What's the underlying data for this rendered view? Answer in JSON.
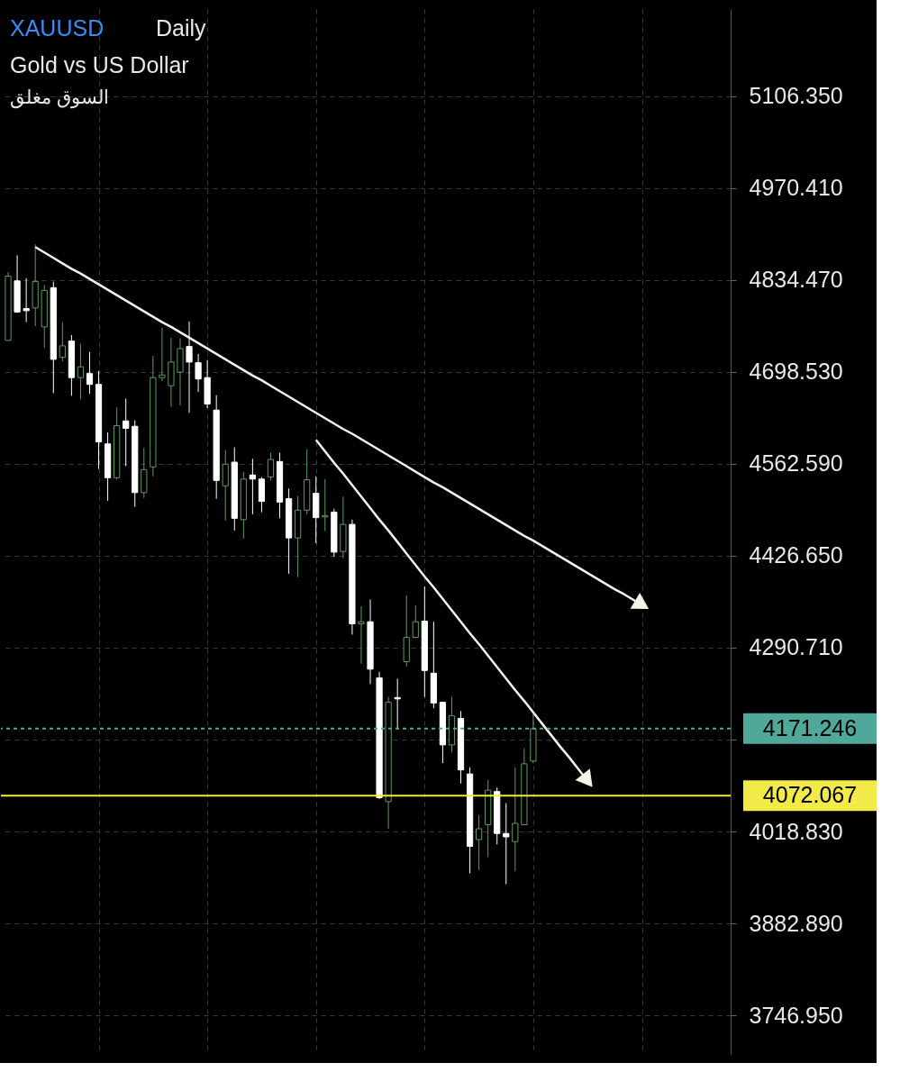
{
  "chart_data": {
    "type": "candlestick",
    "title": "XAUUSD",
    "annotations": [
      "Daily",
      "Gold vs US Dollar",
      "السوق مغلق"
    ],
    "categories": [
      null,
      null,
      null,
      null,
      null,
      null,
      null,
      null,
      null,
      null,
      null,
      null,
      null,
      null,
      null,
      null,
      null,
      null,
      null,
      null,
      null,
      null,
      null,
      null,
      null,
      null,
      null,
      null,
      null,
      null,
      null,
      null,
      null,
      null,
      null,
      null,
      null,
      null,
      null,
      null,
      null,
      null,
      null,
      null,
      null,
      null,
      null,
      null,
      null,
      null,
      null,
      null,
      null,
      null,
      null,
      null,
      null,
      null,
      null,
      null,
      null,
      null,
      null,
      null,
      null,
      null,
      null,
      null,
      null,
      null,
      null,
      null,
      null,
      null,
      null,
      null,
      null,
      null,
      null,
      null
    ],
    "ohlc": [
      [
        4745,
        4846,
        4745,
        4840
      ],
      [
        4833,
        4871,
        4786,
        4787
      ],
      [
        4792,
        4837,
        4772,
        4789
      ],
      [
        4793,
        4887,
        4766,
        4832
      ],
      [
        4765,
        4827,
        4734,
        4819
      ],
      [
        4823,
        4832,
        4667,
        4717
      ],
      [
        4720,
        4772,
        4714,
        4737
      ],
      [
        4744,
        4753,
        4663,
        4690
      ],
      [
        4690,
        4740,
        4658,
        4706
      ],
      [
        4696,
        4728,
        4666,
        4680
      ],
      [
        4680,
        4700,
        4555,
        4595
      ],
      [
        4592,
        4609,
        4508,
        4542
      ],
      [
        4542,
        4646,
        4539,
        4619
      ],
      [
        4626,
        4659,
        4559,
        4615
      ],
      [
        4618,
        4627,
        4499,
        4520
      ],
      [
        4520,
        4586,
        4512,
        4554
      ],
      [
        4558,
        4722,
        4544,
        4690
      ],
      [
        4690,
        4764,
        4685,
        4694
      ],
      [
        4678,
        4749,
        4647,
        4713
      ],
      [
        4698,
        4748,
        4649,
        4733
      ],
      [
        4736,
        4773,
        4638,
        4713
      ],
      [
        4712,
        4725,
        4669,
        4688
      ],
      [
        4690,
        4716,
        4645,
        4651
      ],
      [
        4642,
        4664,
        4511,
        4538
      ],
      [
        4530,
        4583,
        4479,
        4562
      ],
      [
        4565,
        4587,
        4464,
        4482
      ],
      [
        4480,
        4551,
        4452,
        4540
      ],
      [
        4546,
        4570,
        4488,
        4540
      ],
      [
        4540,
        4543,
        4491,
        4507
      ],
      [
        4543,
        4579,
        4538,
        4569
      ],
      [
        4566,
        4579,
        4482,
        4506
      ],
      [
        4511,
        4526,
        4400,
        4453
      ],
      [
        4453,
        4515,
        4395,
        4494
      ],
      [
        4494,
        4584,
        4488,
        4539
      ],
      [
        4519,
        4544,
        4445,
        4483
      ],
      [
        4484,
        4540,
        4463,
        4486
      ],
      [
        4491,
        4496,
        4425,
        4432
      ],
      [
        4433,
        4514,
        4423,
        4473
      ],
      [
        4473,
        4480,
        4310,
        4326
      ],
      [
        4326,
        4352,
        4267,
        4329
      ],
      [
        4329,
        4362,
        4237,
        4259
      ],
      [
        4246,
        4255,
        4067,
        4069
      ],
      [
        4063,
        4218,
        4023,
        4210
      ],
      [
        4217,
        4245,
        4170,
        4215
      ],
      [
        4270,
        4368,
        4263,
        4306
      ],
      [
        4306,
        4353,
        4305,
        4329
      ],
      [
        4330,
        4381,
        4218,
        4257
      ],
      [
        4253,
        4329,
        4201,
        4209
      ],
      [
        4210,
        4211,
        4120,
        4147
      ],
      [
        4147,
        4218,
        4136,
        4190
      ],
      [
        4186,
        4197,
        4090,
        4110
      ],
      [
        4104,
        4114,
        3957,
        3997
      ],
      [
        4007,
        4043,
        3962,
        4023
      ],
      [
        4029,
        4095,
        3981,
        4080
      ],
      [
        4078,
        4084,
        4000,
        4016
      ],
      [
        4016,
        4061,
        3941,
        4011
      ],
      [
        4004,
        4114,
        3960,
        4031
      ],
      [
        4029,
        4142,
        4029,
        4119
      ],
      [
        4123,
        4194,
        4120,
        4171
      ],
      null,
      null,
      null,
      null,
      null,
      null,
      null,
      null,
      null,
      null,
      null,
      null,
      null,
      null,
      null,
      null,
      null,
      null,
      null,
      null,
      null
    ],
    "colors": [
      "#5e9a5e",
      "#ffffff",
      "#ffffff",
      "#5e9a5e",
      "#5e9a5e",
      "#ffffff",
      "#5e9a5e",
      "#ffffff",
      "#5e9a5e",
      "#ffffff",
      "#ffffff",
      "#ffffff",
      "#5e9a5e",
      "#ffffff",
      "#ffffff",
      "#5e9a5e",
      "#5e9a5e",
      "#5e9a5e",
      "#5e9a5e",
      "#5e9a5e",
      "#ffffff",
      "#ffffff",
      "#ffffff",
      "#ffffff",
      "#5e9a5e",
      "#ffffff",
      "#5e9a5e",
      "#ffffff",
      "#ffffff",
      "#5e9a5e",
      "#ffffff",
      "#ffffff",
      "#5e9a5e",
      "#5e9a5e",
      "#ffffff",
      "#5e9a5e",
      "#ffffff",
      "#5e9a5e",
      "#ffffff",
      "#5e9a5e",
      "#ffffff",
      "#ffffff",
      "#5e9a5e",
      "#ffffff",
      "#5e9a5e",
      "#5e9a5e",
      "#ffffff",
      "#ffffff",
      "#ffffff",
      "#5e9a5e",
      "#ffffff",
      "#ffffff",
      "#5e9a5e",
      "#5e9a5e",
      "#ffffff",
      "#ffffff",
      "#5e9a5e",
      "#5e9a5e",
      "#5e9a5e",
      null,
      null,
      null,
      null,
      null,
      null,
      null,
      null,
      null,
      null,
      null,
      null,
      null,
      null,
      null,
      null,
      null,
      null,
      null,
      null,
      null
    ],
    "series": [
      {
        "type": "line",
        "color": "#f5f2e6",
        "values": [
          null,
          null,
          null,
          4883,
          4875,
          4867,
          4859,
          4851,
          4844,
          4836,
          4828,
          4820,
          4812,
          4804,
          4796,
          4788,
          4780,
          4772,
          4765,
          4757,
          4749,
          4741,
          4733,
          4725,
          4717,
          4709,
          4701,
          4693,
          4686,
          4678,
          4670,
          4662,
          4654,
          4646,
          4638,
          4630,
          4622,
          4614,
          4607,
          4599,
          4591,
          4583,
          4575,
          4567,
          4559,
          4551,
          4543,
          4535,
          4528,
          4520,
          4512,
          4504,
          4496,
          4488,
          4480,
          4472,
          4464,
          4456,
          4449,
          4441,
          4433,
          4425,
          4417,
          4409,
          4401,
          4393,
          4385,
          4377,
          4370,
          4362,
          4354,
          null,
          null,
          null,
          null,
          null,
          null,
          null,
          null,
          null
        ]
      },
      {
        "type": "line",
        "color": "#f5f2e6",
        "values": [
          null,
          null,
          null,
          null,
          null,
          null,
          null,
          null,
          null,
          null,
          null,
          null,
          null,
          null,
          null,
          null,
          null,
          null,
          null,
          null,
          null,
          null,
          null,
          null,
          null,
          null,
          null,
          null,
          null,
          null,
          null,
          null,
          null,
          null,
          4598,
          4581,
          4564,
          4548,
          4531,
          4514,
          4497,
          4480,
          4464,
          4447,
          4430,
          4413,
          4396,
          4380,
          4363,
          4346,
          4329,
          4312,
          4296,
          4279,
          4262,
          4245,
          4228,
          4212,
          4195,
          4178,
          4161,
          4144,
          4128,
          4111,
          4094,
          null,
          null,
          null,
          null,
          null,
          null,
          null,
          null,
          null,
          null,
          null,
          null,
          null,
          null,
          null
        ]
      }
    ],
    "ylim": [
      3690,
      5235
    ],
    "yticks": [
      {
        "value": 3746.95,
        "label": "3746.950"
      },
      {
        "value": 3882.89,
        "label": "3882.890"
      },
      {
        "value": 4018.83,
        "label": "4018.830"
      },
      {
        "value": 4154.77,
        "label": null
      },
      {
        "value": 4290.71,
        "label": "4290.710"
      },
      {
        "value": 4426.65,
        "label": "4426.650"
      },
      {
        "value": 4562.59,
        "label": "4562.590"
      },
      {
        "value": 4698.53,
        "label": "4698.530"
      },
      {
        "value": 4834.47,
        "label": "4834.470"
      },
      {
        "value": 4970.41,
        "label": "4970.410"
      },
      {
        "value": 5106.35,
        "label": "5106.350"
      }
    ],
    "ref_lines": [
      {
        "axis": "y",
        "value": 4171.246,
        "label": "4171.246",
        "color": "#4fa89a",
        "line_style": "dashed"
      },
      {
        "axis": "y",
        "value": 4072.067,
        "label": "4072.067",
        "color": "#f2ea48",
        "line_style": "solid"
      }
    ],
    "grid": true
  }
}
